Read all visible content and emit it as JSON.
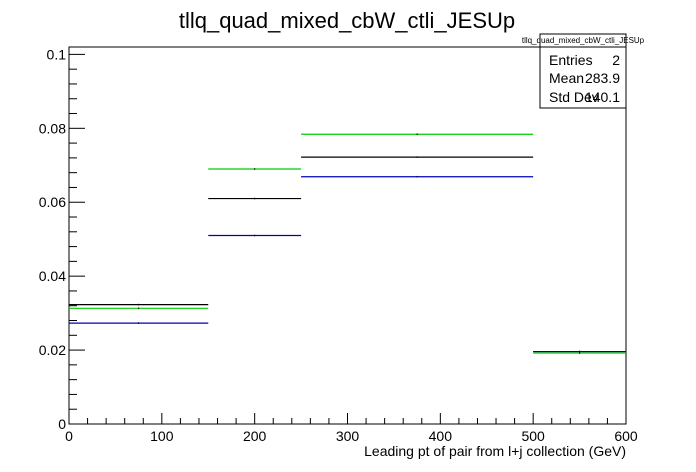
{
  "chart_data": {
    "type": "step-histogram",
    "title": "tllq_quad_mixed_cbW_ctli_JESUp",
    "xlabel": "Leading pt of pair from l+j collection (GeV)",
    "ylabel": "",
    "xlim": [
      0,
      600
    ],
    "ylim": [
      0,
      0.102
    ],
    "x_ticks": [
      0,
      100,
      200,
      300,
      400,
      500,
      600
    ],
    "x_tick_labels": [
      "0",
      "100",
      "200",
      "300",
      "400",
      "500",
      "600"
    ],
    "y_ticks": [
      0,
      0.02,
      0.04,
      0.06,
      0.08,
      0.1
    ],
    "y_tick_labels": [
      "0",
      "0.02",
      "0.04",
      "0.06",
      "0.08",
      "0.1"
    ],
    "bin_edges": [
      0,
      150,
      250,
      500,
      600
    ],
    "series": [
      {
        "color": "#000000",
        "values": [
          0.0323,
          0.061,
          0.0722,
          0.0196
        ]
      },
      {
        "color": "#00cc00",
        "values": [
          0.0313,
          0.069,
          0.0784,
          0.0192
        ]
      },
      {
        "color": "#0000bb",
        "values": [
          0.0273,
          0.051,
          0.0669,
          0.0196
        ]
      }
    ],
    "grid": false,
    "stats_box": {
      "title": "tllq_quad_mixed_cbW_ctli_JESUp",
      "rows": [
        {
          "label": "Entries",
          "value": "2"
        },
        {
          "label": "Mean",
          "value": "283.9"
        },
        {
          "label": "Std Dev",
          "value": "140.1"
        }
      ]
    }
  }
}
